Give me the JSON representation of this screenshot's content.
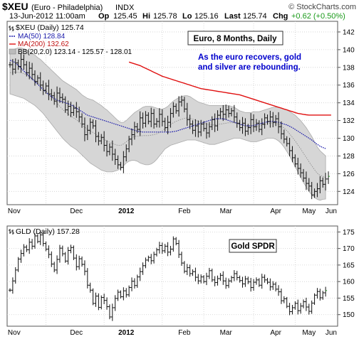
{
  "header": {
    "symbol": "$XEU",
    "description": "(Euro - Philadelphia)",
    "exchange": "INDX",
    "date_time": "13-Jun-2012 11:00am",
    "open_label": "Op",
    "open": "125.45",
    "high_label": "Hi",
    "high": "125.78",
    "low_label": "Lo",
    "low": "125.16",
    "last_label": "Last",
    "last": "125.74",
    "change_label": "Chg",
    "change": "+0.62 (+0.50%)",
    "change_color": "#1a9a1a",
    "watermark": "© StockCharts.com"
  },
  "colors": {
    "price_bar": "#111111",
    "ma50": "#1a1aaa",
    "ma200": "#e01010",
    "bb_band": "#d6d6d6",
    "bb_mid": "#888888",
    "annotation_text": "#0000cc",
    "grid": "#cfcfcf"
  },
  "chart_data": [
    {
      "type": "ohlc",
      "panel": "upper",
      "legend": [
        {
          "name": "$XEU (Daily) 125.74",
          "icon": "ohlc-icon"
        },
        {
          "name": "MA(50) 128.84",
          "color": "#1a1aaa",
          "style": "dotted"
        },
        {
          "name": "MA(200) 132.62",
          "color": "#e01010",
          "style": "solid"
        },
        {
          "name": "BB(20,2.0) 123.14 - 125.57 - 128.01",
          "color": "#bbbbbb",
          "style": "area"
        }
      ],
      "title_box": "Euro, 8 Months, Daily",
      "annotation": [
        "As the euro recovers, gold",
        "and silver are rebounding."
      ],
      "x_labels": [
        "Nov",
        "Dec",
        "2012",
        "Feb",
        "Mar",
        "Apr",
        "May",
        "Jun"
      ],
      "ylim": [
        122.5,
        143.2
      ],
      "y_ticks": [
        124,
        126,
        128,
        130,
        132,
        134,
        136,
        138,
        140,
        142
      ],
      "close": [
        138.3,
        137.8,
        138.5,
        138.1,
        138.9,
        138.3,
        137.4,
        137.9,
        137.2,
        136.4,
        136.8,
        136.0,
        135.4,
        135.9,
        135.0,
        134.8,
        134.2,
        135.1,
        134.6,
        134.4,
        133.2,
        133.6,
        132.9,
        133.4,
        133.0,
        132.4,
        131.6,
        130.4,
        130.9,
        131.8,
        131.4,
        130.2,
        129.7,
        130.1,
        129.2,
        128.5,
        129.0,
        128.2,
        127.6,
        127.0,
        126.7,
        127.9,
        128.8,
        129.9,
        130.4,
        131.3,
        131.0,
        132.3,
        131.7,
        132.6,
        131.9,
        132.8,
        131.6,
        131.9,
        132.7,
        131.9,
        131.2,
        131.8,
        132.8,
        133.6,
        133.1,
        134.1,
        134.3,
        133.3,
        132.1,
        131.6,
        130.9,
        131.4,
        130.7,
        131.6,
        131.1,
        130.6,
        131.3,
        132.1,
        131.4,
        132.6,
        133.0,
        132.7,
        133.2,
        132.8,
        133.1,
        132.4,
        131.7,
        131.2,
        131.7,
        130.8,
        131.2,
        132.1,
        131.3,
        131.7,
        131.0,
        131.6,
        132.3,
        131.9,
        132.4,
        131.8,
        132.2,
        131.3,
        130.5,
        129.9,
        129.4,
        128.6,
        127.8,
        127.1,
        126.6,
        126.1,
        125.5,
        124.9,
        124.6,
        123.6,
        124.0,
        124.3,
        125.2,
        124.8,
        125.4,
        125.7
      ],
      "ma50": [
        138.8,
        138.7,
        138.5,
        138.2,
        137.9,
        137.6,
        137.3,
        137.0,
        136.7,
        136.4,
        136.1,
        135.8,
        135.5,
        135.2,
        134.9,
        134.7,
        134.5,
        134.3,
        134.2,
        134.1,
        134.0,
        133.9,
        133.8,
        133.6,
        133.4,
        133.2,
        133.0,
        132.8,
        132.6,
        132.5,
        132.4,
        132.3,
        132.2,
        132.1,
        132.0,
        131.9,
        131.8,
        131.7,
        131.6,
        131.5,
        131.4,
        131.3,
        131.2,
        131.1,
        131.0,
        130.9,
        130.8,
        130.75,
        130.7,
        130.7,
        130.7,
        130.7,
        130.7,
        130.7,
        130.7,
        130.7,
        130.7,
        130.7,
        130.7,
        130.75,
        130.8,
        130.9,
        131.0,
        131.1,
        131.2,
        131.3,
        131.4,
        131.5,
        131.6,
        131.7,
        131.8,
        131.9,
        132.0,
        132.1,
        132.2,
        132.2,
        132.2,
        132.2,
        132.1,
        132.0,
        131.9,
        131.8,
        131.7,
        131.6,
        131.5,
        131.45,
        131.4,
        131.4,
        131.45,
        131.5,
        131.6,
        131.7,
        131.8,
        131.85,
        131.9,
        131.9,
        131.85,
        131.8,
        131.7,
        131.6,
        131.5,
        131.35,
        131.2,
        131.0,
        130.8,
        130.6,
        130.4,
        130.2,
        130.0,
        129.8,
        129.55,
        129.3,
        129.1,
        128.95,
        128.84
      ],
      "ma200": [
        null,
        null,
        null,
        null,
        null,
        null,
        null,
        null,
        null,
        null,
        null,
        null,
        null,
        null,
        null,
        null,
        null,
        null,
        null,
        null,
        null,
        null,
        null,
        null,
        null,
        null,
        null,
        null,
        null,
        null,
        null,
        null,
        null,
        null,
        null,
        null,
        null,
        null,
        null,
        null,
        null,
        null,
        null,
        138.6,
        138.5,
        138.4,
        138.3,
        138.2,
        138.05,
        137.9,
        137.75,
        137.6,
        137.45,
        137.3,
        137.15,
        137.0,
        136.9,
        136.8,
        136.7,
        136.6,
        136.5,
        136.4,
        136.3,
        136.2,
        136.1,
        136.0,
        135.9,
        135.8,
        135.7,
        135.6,
        135.55,
        135.5,
        135.45,
        135.4,
        135.35,
        135.3,
        135.25,
        135.2,
        135.15,
        135.1,
        135.05,
        135.0,
        134.95,
        134.9,
        134.8,
        134.7,
        134.6,
        134.5,
        134.4,
        134.3,
        134.2,
        134.1,
        134.0,
        133.9,
        133.8,
        133.7,
        133.6,
        133.5,
        133.4,
        133.3,
        133.2,
        133.1,
        133.0,
        132.9,
        132.8,
        132.75,
        132.7,
        132.65,
        132.62,
        132.62,
        132.62,
        132.62,
        132.62,
        132.62,
        132.62,
        132.62,
        132.62
      ],
      "bb_upper": [
        139.8,
        140.0,
        140.1,
        140.2,
        140.2,
        140.1,
        140.0,
        139.8,
        139.6,
        139.4,
        139.1,
        138.9,
        138.6,
        138.3,
        138.0,
        137.7,
        137.4,
        137.1,
        136.8,
        136.5,
        136.3,
        136.1,
        135.9,
        135.7,
        135.5,
        135.2,
        134.9,
        134.7,
        134.5,
        134.4,
        134.3,
        134.1,
        133.9,
        133.7,
        133.4,
        133.2,
        132.9,
        132.6,
        132.3,
        132.0,
        131.8,
        131.8,
        132.0,
        132.3,
        132.6,
        132.9,
        133.1,
        133.3,
        133.5,
        133.6,
        133.6,
        133.6,
        133.5,
        133.4,
        133.3,
        133.3,
        133.4,
        133.6,
        133.9,
        134.2,
        134.4,
        134.6,
        134.7,
        134.8,
        134.8,
        134.7,
        134.5,
        134.3,
        134.1,
        134.0,
        133.9,
        133.8,
        133.7,
        133.7,
        133.7,
        133.7,
        133.7,
        133.7,
        133.7,
        133.7,
        133.6,
        133.5,
        133.3,
        133.1,
        133.0,
        132.9,
        132.9,
        132.9,
        133.0,
        133.0,
        133.0,
        133.1,
        133.2,
        133.3,
        133.4,
        133.5,
        133.5,
        133.5,
        133.4,
        133.3,
        133.2,
        133.0,
        132.8,
        132.6,
        132.3,
        132.0,
        131.6,
        131.2,
        130.7,
        130.2,
        129.6,
        129.0,
        128.6,
        128.3,
        128.01
      ],
      "bb_lower": [
        135.0,
        134.9,
        134.8,
        134.7,
        134.6,
        134.5,
        134.3,
        134.1,
        133.9,
        133.7,
        133.4,
        133.1,
        132.8,
        132.4,
        132.0,
        131.6,
        131.2,
        130.8,
        130.4,
        130.0,
        129.7,
        129.4,
        129.1,
        128.9,
        128.7,
        128.4,
        128.1,
        127.8,
        127.5,
        127.2,
        127.0,
        126.8,
        126.6,
        126.4,
        126.3,
        126.2,
        126.2,
        126.2,
        126.3,
        126.4,
        126.6,
        126.9,
        127.2,
        127.4,
        127.5,
        127.5,
        127.4,
        127.2,
        127.1,
        127.0,
        127.0,
        127.1,
        127.3,
        127.6,
        128.0,
        128.4,
        128.8,
        129.0,
        129.2,
        129.3,
        129.4,
        129.5,
        129.6,
        129.7,
        129.8,
        129.8,
        129.8,
        129.8,
        129.7,
        129.6,
        129.5,
        129.4,
        129.3,
        129.3,
        129.3,
        129.4,
        129.5,
        129.6,
        129.7,
        129.8,
        129.9,
        130.0,
        130.0,
        130.0,
        129.9,
        129.8,
        129.7,
        129.6,
        129.6,
        129.6,
        129.7,
        129.8,
        129.9,
        130.0,
        130.0,
        130.0,
        129.9,
        129.7,
        129.4,
        129.0,
        128.5,
        128.0,
        127.4,
        126.8,
        126.2,
        125.6,
        125.0,
        124.5,
        124.0,
        123.6,
        123.3,
        123.1,
        123.0,
        123.1,
        123.14
      ]
    },
    {
      "type": "ohlc",
      "panel": "lower",
      "legend": [
        {
          "name": "GLD (Daily) 157.28",
          "icon": "ohlc-icon"
        }
      ],
      "title_box": "Gold SPDR",
      "x_labels": [
        "Nov",
        "Dec",
        "2012",
        "Feb",
        "Mar",
        "Apr",
        "May",
        "Jun"
      ],
      "ylim": [
        146.5,
        176.8
      ],
      "y_ticks": [
        150,
        155,
        160,
        165,
        170,
        175
      ],
      "close": [
        157.4,
        160.2,
        163.5,
        166.8,
        168.5,
        170.4,
        169.6,
        171.9,
        170.7,
        173.8,
        172.1,
        174.1,
        171.5,
        169.8,
        168.2,
        165.3,
        163.5,
        166.7,
        170.1,
        168.4,
        166.2,
        169.4,
        170.3,
        167.1,
        164.5,
        166.9,
        165.2,
        163.1,
        158.9,
        157.4,
        153.4,
        155.6,
        152.2,
        155.2,
        154.3,
        152.4,
        149.3,
        152.1,
        154.9,
        156.8,
        155.4,
        157.2,
        156.0,
        158.2,
        160.1,
        158.8,
        161.4,
        163.0,
        164.8,
        166.5,
        167.3,
        166.3,
        168.2,
        169.6,
        170.9,
        169.3,
        170.7,
        168.9,
        169.8,
        172.9,
        171.5,
        168.2,
        165.6,
        163.1,
        164.2,
        162.4,
        163.0,
        161.3,
        160.2,
        161.4,
        160.0,
        161.6,
        163.3,
        160.5,
        159.7,
        160.9,
        161.9,
        160.2,
        158.8,
        160.2,
        161.2,
        162.4,
        161.2,
        160.3,
        159.3,
        160.8,
        159.9,
        158.2,
        159.8,
        160.5,
        158.9,
        161.3,
        160.5,
        159.8,
        158.4,
        159.2,
        157.7,
        156.9,
        154.2,
        154.8,
        152.5,
        150.9,
        152.1,
        153.4,
        151.2,
        152.6,
        153.9,
        152.3,
        151.0,
        153.5,
        155.9,
        157.0,
        155.1,
        156.6,
        157.28
      ]
    }
  ]
}
